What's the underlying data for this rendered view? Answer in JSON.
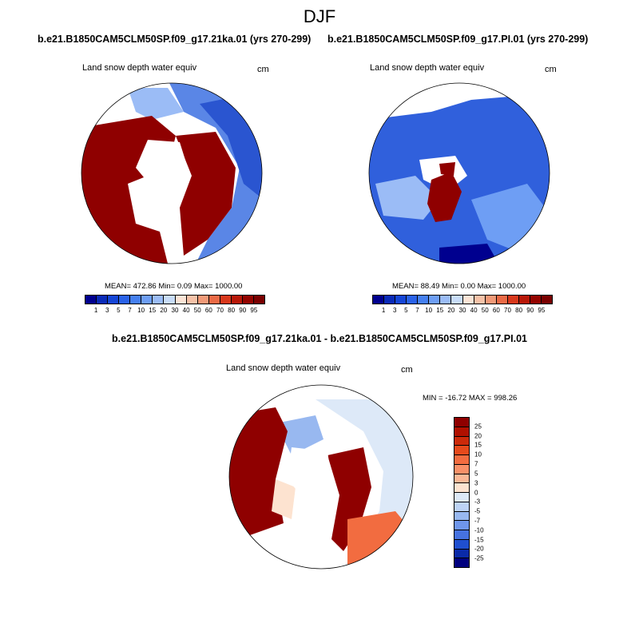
{
  "title": "DJF",
  "panels": [
    {
      "case_title": "b.e21.B1850CAM5CLM50SP.f09_g17.21ka.01 (yrs 270-299)",
      "variable": "Land snow depth water equiv",
      "units": "cm",
      "stats": "MEAN= 472.86  Min=   0.09  Max= 1000.00"
    },
    {
      "case_title": "b.e21.B1850CAM5CLM50SP.f09_g17.PI.01 (yrs 270-299)",
      "variable": "Land snow depth water equiv",
      "units": "cm",
      "stats": "MEAN=  88.49  Min=   0.00  Max= 1000.00"
    }
  ],
  "diff_panel": {
    "title": "b.e21.B1850CAM5CLM50SP.f09_g17.21ka.01 - b.e21.B1850CAM5CLM50SP.f09_g17.PI.01",
    "variable": "Land snow depth water equiv",
    "units": "cm",
    "stats": "MIN = -16.72 MAX = 998.26"
  },
  "colorbar_levels": [
    "1",
    "3",
    "5",
    "7",
    "10",
    "15",
    "20",
    "30",
    "40",
    "50",
    "60",
    "70",
    "80",
    "90",
    "95"
  ],
  "colorbar_colors": [
    "#00008f",
    "#0a2bb8",
    "#1546d6",
    "#2a62e8",
    "#4680f0",
    "#6e9ef4",
    "#9bbcf6",
    "#c8dcf8",
    "#fbe4d6",
    "#f6c2a8",
    "#f19a78",
    "#ea6a46",
    "#d8381c",
    "#b81808",
    "#940400",
    "#7a0000"
  ],
  "diff_levels": [
    "25",
    "20",
    "15",
    "10",
    "7",
    "5",
    "3",
    "0",
    "-3",
    "-5",
    "-7",
    "-10",
    "-15",
    "-20",
    "-25"
  ],
  "diff_colors": [
    "#8f0000",
    "#b01000",
    "#cc2a0a",
    "#e64a1c",
    "#f26c40",
    "#f89068",
    "#fbb896",
    "#fde3d0",
    "#dde9f8",
    "#bdd3f5",
    "#98b8f0",
    "#6f96ea",
    "#4672e0",
    "#1f4fcf",
    "#0a2aa8",
    "#00007f"
  ]
}
